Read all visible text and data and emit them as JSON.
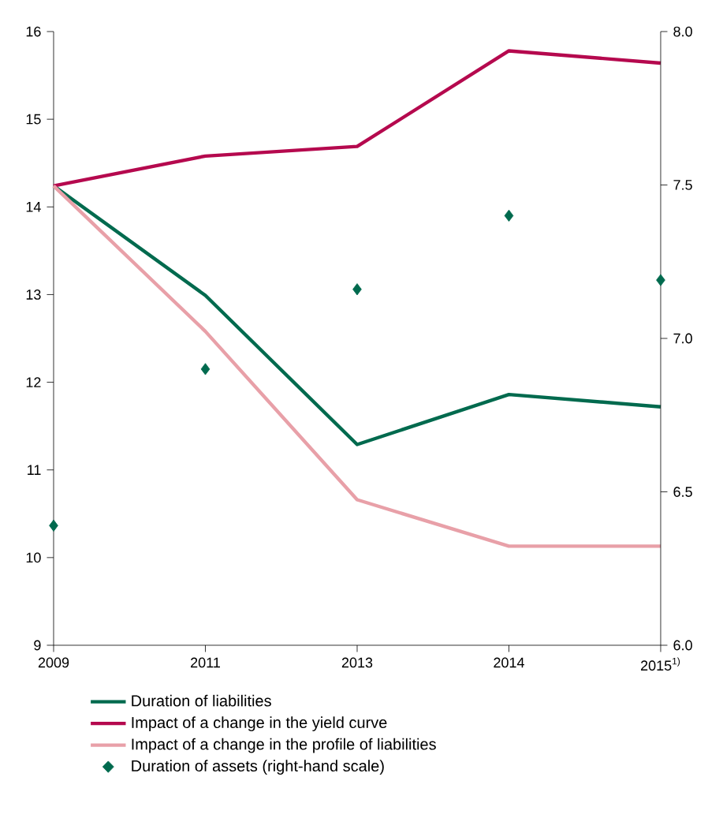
{
  "chart_data": {
    "type": "line",
    "categories": [
      "2009",
      "2011",
      "2013",
      "2014",
      "2015$^{1)}$"
    ],
    "series": [
      {
        "name": "Duration of liabilities",
        "color": "#006a4e",
        "values": [
          14.24,
          12.99,
          11.29,
          11.86,
          11.72
        ]
      },
      {
        "name": "Impact of a change in the yield curve",
        "color": "#b5094e",
        "values": [
          14.24,
          14.58,
          14.69,
          15.78,
          15.64
        ]
      },
      {
        "name": "Impact of a change in the profile of liabilities",
        "color": "#e8a0a8",
        "values": [
          14.24,
          12.58,
          10.66,
          10.13,
          10.13
        ]
      },
      {
        "name": "Duration of assets (right-hand scale)",
        "color": "#006a4e",
        "type": "scatter",
        "axis": "y2",
        "marker": "diamond",
        "values": [
          6.39,
          6.9,
          7.16,
          7.4,
          7.19
        ]
      }
    ],
    "ylim": [
      9,
      16
    ],
    "yticks": [
      9,
      10,
      11,
      12,
      13,
      14,
      15,
      16
    ],
    "y2lim": [
      6,
      8
    ],
    "y2ticks": [
      {
        "value": 6,
        "label": "6.0"
      },
      {
        "value": 6.5,
        "label": "6.5"
      },
      {
        "value": 7,
        "label": "7.0"
      },
      {
        "value": 7.5,
        "label": "7.5"
      },
      {
        "value": 8,
        "label": "8.0"
      }
    ],
    "legend": "bottom"
  }
}
